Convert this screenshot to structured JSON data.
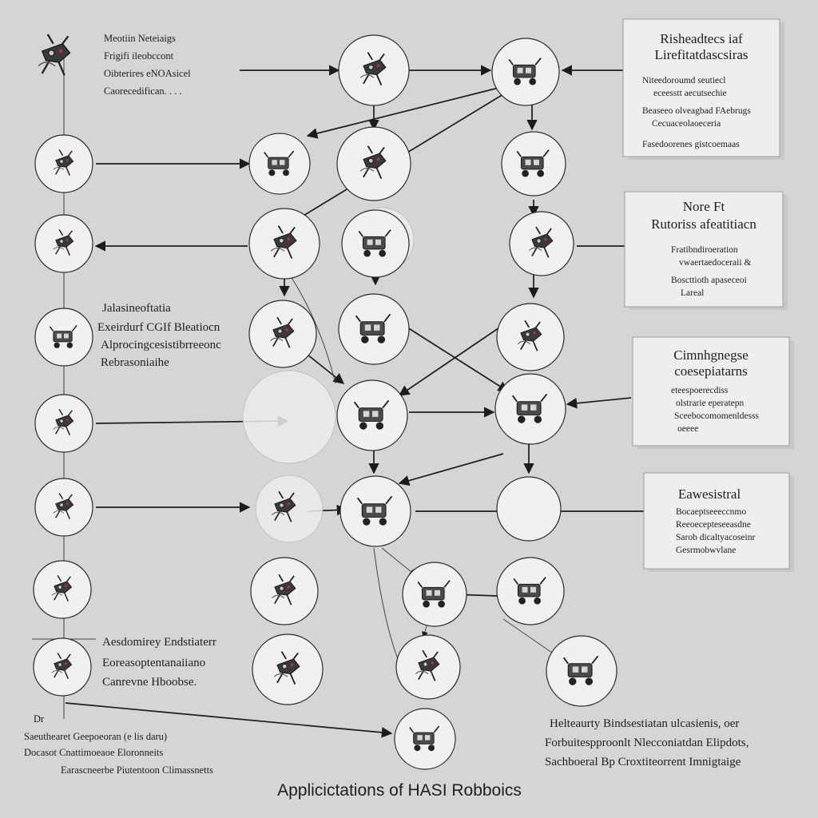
{
  "diagram": {
    "title": "Applicictations of HASI Robboics",
    "header_left": {
      "lines": [
        "Meotiin Neteiaigs",
        "Frigifi ileobccont",
        "Oibterires eNOAsicel",
        "Caorecedifican. . . ."
      ]
    },
    "left_mid_block": {
      "lines": [
        "Jalasineoftatia",
        "Exeirdurf CGIf Bleatiocn",
        "Alprocingcesistibrreeonc",
        "Rebrasoniaihe"
      ]
    },
    "left_lower_block": {
      "lines": [
        "Aesdomirey Endstiaterr",
        "Eoreasoptentanaiiano",
        "Canrevne Hboobse."
      ]
    },
    "bottom_left_block": {
      "lines": [
        "Dr",
        "Saeuthearet Geepoeoran (e lis daru)",
        "Docasot Cnattimoeaoe Eloronneits",
        "Earascneerbe Piutentoon Climassnetts"
      ]
    },
    "bottom_right_block": {
      "lines": [
        "Helteaurty Bindsestiatan ulcasienis, oer",
        "Forbuitespproonlt Nlecconiatdan Elipdots,",
        "Sachboeral Bp Croxtiteorrent Imnigtaige"
      ]
    },
    "boxes": [
      {
        "title": [
          "Risheadtecs iaf",
          "Lirefitatdascsiras"
        ],
        "items": [
          "Niteedoroumd seutiecl",
          "eceesstt aecutsechie",
          "Beaseeo olveagbad FAebrugs",
          "Cecuaceolaoeceria",
          "Fasedoorenes gistcoemaas"
        ]
      },
      {
        "title": [
          "Nore Ft",
          "Rutoriss afeatitiacn"
        ],
        "items": [
          "Fratibndiroeration",
          "vwaertaedoceraii &",
          "Boscttioth apaseceoi",
          "Lareal"
        ]
      },
      {
        "title": [
          "Cimnhgnegse",
          "coesepiatarns"
        ],
        "items": [
          "eteespoerecdiss",
          "olstrarie eperatepn",
          "Sceebocomomenldesss",
          "oeeee"
        ]
      },
      {
        "title": [
          "Eawesistral"
        ],
        "items": [
          "Bocaeptseeeccnmo",
          "Reeoecepteseeasdne",
          "Sarob dicaltyacoseinr",
          "Gesrmobwvlane"
        ]
      }
    ]
  }
}
